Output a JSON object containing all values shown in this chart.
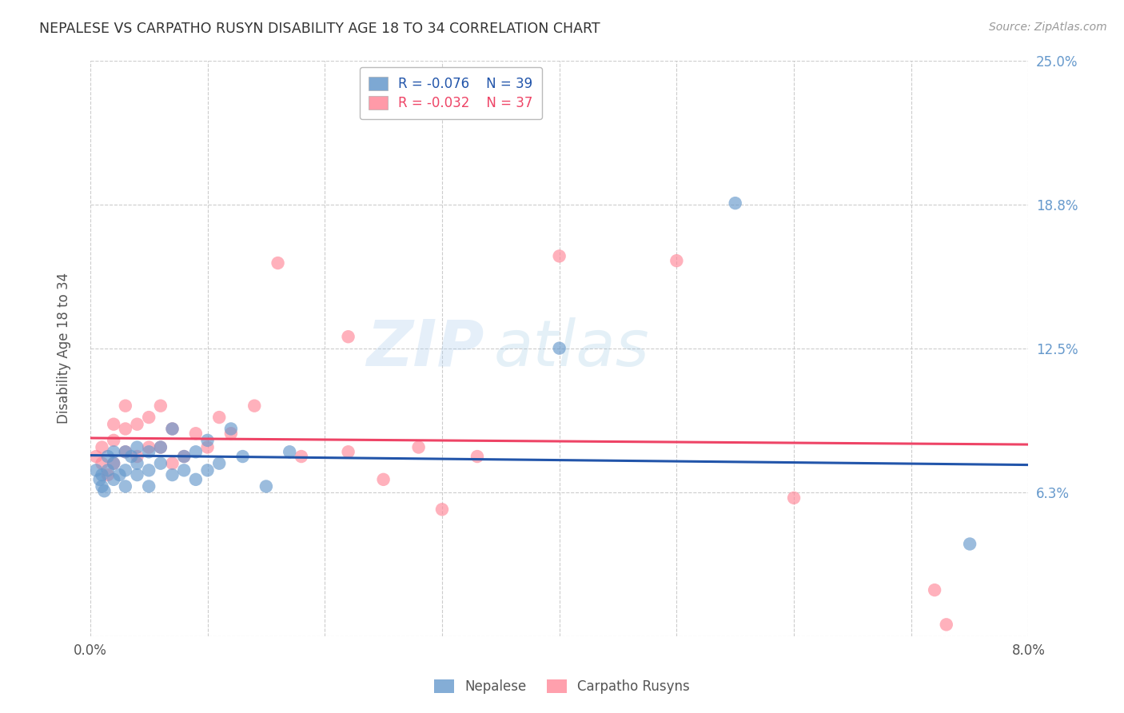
{
  "title": "NEPALESE VS CARPATHO RUSYN DISABILITY AGE 18 TO 34 CORRELATION CHART",
  "source": "Source: ZipAtlas.com",
  "ylabel": "Disability Age 18 to 34",
  "xlabel": "",
  "xlim": [
    0.0,
    0.08
  ],
  "ylim": [
    0.0,
    0.25
  ],
  "yticks": [
    0.0,
    0.0625,
    0.125,
    0.1875,
    0.25
  ],
  "ytick_labels": [
    "",
    "6.3%",
    "12.5%",
    "18.8%",
    "25.0%"
  ],
  "xticks": [
    0.0,
    0.01,
    0.02,
    0.03,
    0.04,
    0.05,
    0.06,
    0.07,
    0.08
  ],
  "xtick_labels": [
    "0.0%",
    "",
    "",
    "",
    "",
    "",
    "",
    "",
    "8.0%"
  ],
  "nepalese_R": -0.076,
  "nepalese_N": 39,
  "carpatho_R": -0.032,
  "carpatho_N": 37,
  "nepalese_color": "#6699CC",
  "carpatho_color": "#FF8899",
  "nepalese_line_color": "#2255AA",
  "carpatho_line_color": "#EE4466",
  "background_color": "#ffffff",
  "grid_color": "#cccccc",
  "title_color": "#333333",
  "axis_label_color": "#555555",
  "right_tick_color": "#6699CC",
  "nepalese_x": [
    0.0005,
    0.0008,
    0.001,
    0.001,
    0.0012,
    0.0015,
    0.0015,
    0.002,
    0.002,
    0.002,
    0.0025,
    0.003,
    0.003,
    0.003,
    0.0035,
    0.004,
    0.004,
    0.004,
    0.005,
    0.005,
    0.005,
    0.006,
    0.006,
    0.007,
    0.007,
    0.008,
    0.008,
    0.009,
    0.009,
    0.01,
    0.01,
    0.011,
    0.012,
    0.013,
    0.015,
    0.017,
    0.04,
    0.055,
    0.075
  ],
  "nepalese_y": [
    0.072,
    0.068,
    0.065,
    0.07,
    0.063,
    0.072,
    0.078,
    0.068,
    0.075,
    0.08,
    0.07,
    0.065,
    0.072,
    0.08,
    0.078,
    0.07,
    0.075,
    0.082,
    0.065,
    0.072,
    0.08,
    0.075,
    0.082,
    0.07,
    0.09,
    0.072,
    0.078,
    0.068,
    0.08,
    0.072,
    0.085,
    0.075,
    0.09,
    0.078,
    0.065,
    0.08,
    0.125,
    0.188,
    0.04
  ],
  "carpatho_x": [
    0.0005,
    0.001,
    0.001,
    0.0015,
    0.002,
    0.002,
    0.002,
    0.003,
    0.003,
    0.003,
    0.004,
    0.004,
    0.005,
    0.005,
    0.006,
    0.006,
    0.007,
    0.007,
    0.008,
    0.009,
    0.01,
    0.011,
    0.012,
    0.014,
    0.016,
    0.018,
    0.022,
    0.022,
    0.025,
    0.028,
    0.03,
    0.033,
    0.04,
    0.05,
    0.06,
    0.072,
    0.073
  ],
  "carpatho_y": [
    0.078,
    0.075,
    0.082,
    0.07,
    0.075,
    0.085,
    0.092,
    0.08,
    0.09,
    0.1,
    0.078,
    0.092,
    0.082,
    0.095,
    0.082,
    0.1,
    0.075,
    0.09,
    0.078,
    0.088,
    0.082,
    0.095,
    0.088,
    0.1,
    0.162,
    0.078,
    0.13,
    0.08,
    0.068,
    0.082,
    0.055,
    0.078,
    0.165,
    0.163,
    0.06,
    0.02,
    0.005
  ],
  "watermark_zip": "ZIP",
  "watermark_atlas": "atlas",
  "nepalese_line_intercept": 0.0785,
  "nepalese_line_slope": -0.052,
  "carpatho_line_intercept": 0.086,
  "carpatho_line_slope": -0.035
}
